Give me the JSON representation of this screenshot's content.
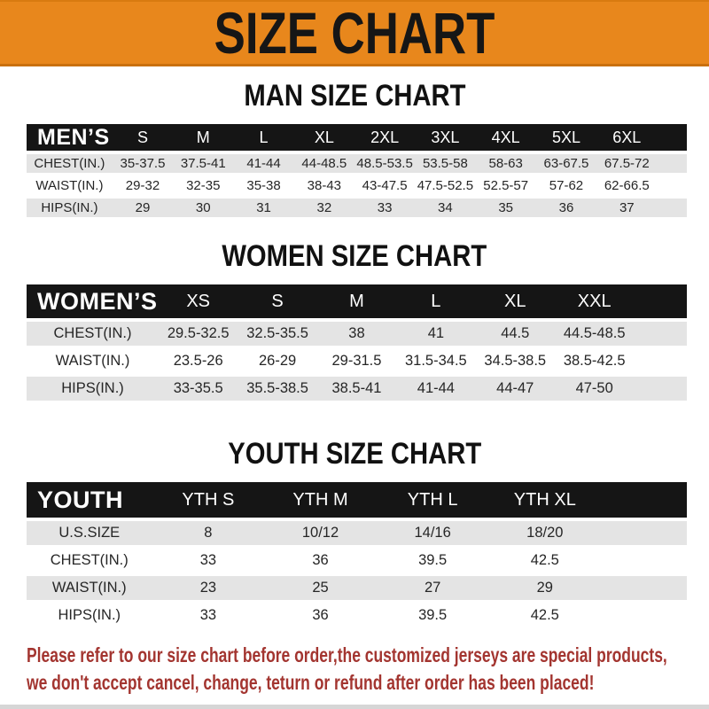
{
  "title": "SIZE CHART",
  "sections": [
    {
      "heading": "MAN SIZE CHART",
      "table": {
        "header": [
          "MEN’S",
          "S",
          "M",
          "L",
          "XL",
          "2XL",
          "3XL",
          "4XL",
          "5XL",
          "6XL"
        ],
        "rows": [
          [
            "CHEST(IN.)",
            "35-37.5",
            "37.5-41",
            "41-44",
            "44-48.5",
            "48.5-53.5",
            "53.5-58",
            "58-63",
            "63-67.5",
            "67.5-72"
          ],
          [
            "WAIST(IN.)",
            "29-32",
            "32-35",
            "35-38",
            "38-43",
            "43-47.5",
            "47.5-52.5",
            "52.5-57",
            "57-62",
            "62-66.5"
          ],
          [
            "HIPS(IN.)",
            "29",
            "30",
            "31",
            "32",
            "33",
            "34",
            "35",
            "36",
            "37"
          ]
        ]
      }
    },
    {
      "heading": "WOMEN SIZE CHART",
      "table": {
        "header": [
          "WOMEN’S",
          "XS",
          "S",
          "M",
          "L",
          "XL",
          "XXL"
        ],
        "rows": [
          [
            "CHEST(IN.)",
            "29.5-32.5",
            "32.5-35.5",
            "38",
            "41",
            "44.5",
            "44.5-48.5"
          ],
          [
            "WAIST(IN.)",
            "23.5-26",
            "26-29",
            "29-31.5",
            "31.5-34.5",
            "34.5-38.5",
            "38.5-42.5"
          ],
          [
            "HIPS(IN.)",
            "33-35.5",
            "35.5-38.5",
            "38.5-41",
            "41-44",
            "44-47",
            "47-50"
          ]
        ]
      }
    },
    {
      "heading": "YOUTH SIZE CHART",
      "table": {
        "header": [
          "YOUTH",
          "YTH S",
          "YTH M",
          "YTH L",
          "YTH XL"
        ],
        "rows": [
          [
            "U.S.SIZE",
            "8",
            "10/12",
            "14/16",
            "18/20"
          ],
          [
            "CHEST(IN.)",
            "33",
            "36",
            "39.5",
            "42.5"
          ],
          [
            "WAIST(IN.)",
            "23",
            "25",
            "27",
            "29"
          ],
          [
            "HIPS(IN.)",
            "33",
            "36",
            "39.5",
            "42.5"
          ]
        ]
      }
    }
  ],
  "disclaimer": {
    "line1": "Please refer to our size chart before order,the customized jerseys are special products,",
    "line2": "we don't accept cancel, change, teturn or refund after order has been placed!"
  },
  "colors": {
    "banner_orange": "#E8871C",
    "banner_border": "#C9700F",
    "header_black": "#151515",
    "row_gray": "#E4E4E4",
    "disclaimer_red": "#A33530"
  }
}
